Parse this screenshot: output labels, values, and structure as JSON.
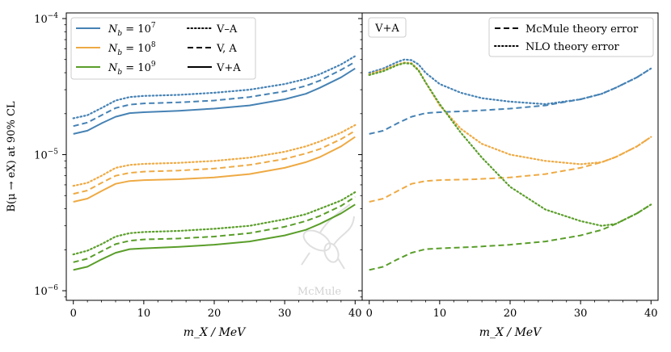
{
  "chart_data": [
    {
      "type": "line",
      "panel": "left",
      "ylabel": "B(μ → eX) at 90% CL",
      "xlabel": "m_X / MeV",
      "xlim": [
        -1,
        41
      ],
      "ylim": [
        8.5e-07,
        0.00011
      ],
      "yscale": "log",
      "xticks": [
        "0",
        "10",
        "20",
        "30",
        "40"
      ],
      "yticks": [
        {
          "value": 1e-06,
          "base": "10",
          "exp": "−6"
        },
        {
          "value": 1e-05,
          "base": "10",
          "exp": "−5"
        },
        {
          "value": 0.0001,
          "base": "10",
          "exp": "−4"
        }
      ],
      "series": [
        {
          "name": "Nb=1e7 V−A",
          "color": "#4682b4",
          "dash": "dotted",
          "x": [
            0,
            2,
            4,
            6,
            8,
            10,
            15,
            20,
            25,
            30,
            33,
            35,
            38,
            40
          ],
          "values": [
            1.85e-05,
            1.95e-05,
            2.2e-05,
            2.5e-05,
            2.65e-05,
            2.7e-05,
            2.75e-05,
            2.85e-05,
            3e-05,
            3.3e-05,
            3.6e-05,
            3.9e-05,
            4.6e-05,
            5.3e-05
          ]
        },
        {
          "name": "Nb=1e7 V,A",
          "color": "#4682b4",
          "dash": "dashed",
          "x": [
            0,
            2,
            4,
            6,
            8,
            10,
            15,
            20,
            25,
            30,
            33,
            35,
            38,
            40
          ],
          "values": [
            1.62e-05,
            1.72e-05,
            1.95e-05,
            2.2e-05,
            2.33e-05,
            2.38e-05,
            2.42e-05,
            2.5e-05,
            2.65e-05,
            2.92e-05,
            3.2e-05,
            3.5e-05,
            4.2e-05,
            4.8e-05
          ]
        },
        {
          "name": "Nb=1e7 V+A",
          "color": "#4682b4",
          "dash": "solid",
          "x": [
            0,
            2,
            4,
            6,
            8,
            10,
            15,
            20,
            25,
            30,
            33,
            35,
            38,
            40
          ],
          "values": [
            1.42e-05,
            1.5e-05,
            1.7e-05,
            1.9e-05,
            2.02e-05,
            2.05e-05,
            2.1e-05,
            2.18e-05,
            2.3e-05,
            2.55e-05,
            2.8e-05,
            3.1e-05,
            3.7e-05,
            4.3e-05
          ]
        },
        {
          "name": "Nb=1e8 V−A",
          "color": "#eeaa44",
          "dash": "dotted",
          "x": [
            0,
            2,
            4,
            6,
            8,
            10,
            15,
            20,
            25,
            30,
            33,
            35,
            38,
            40
          ],
          "values": [
            5.9e-06,
            6.2e-06,
            7e-06,
            8e-06,
            8.4e-06,
            8.55e-06,
            8.7e-06,
            9e-06,
            9.5e-06,
            1.05e-05,
            1.15e-05,
            1.25e-05,
            1.45e-05,
            1.65e-05
          ]
        },
        {
          "name": "Nb=1e8 V,A",
          "color": "#eeaa44",
          "dash": "dashed",
          "x": [
            0,
            2,
            4,
            6,
            8,
            10,
            15,
            20,
            25,
            30,
            33,
            35,
            38,
            40
          ],
          "values": [
            5.15e-06,
            5.45e-06,
            6.2e-06,
            7e-06,
            7.35e-06,
            7.5e-06,
            7.65e-06,
            7.9e-06,
            8.4e-06,
            9.3e-06,
            1.02e-05,
            1.1e-05,
            1.3e-05,
            1.5e-05
          ]
        },
        {
          "name": "Nb=1e8 V+A",
          "color": "#eeaa44",
          "dash": "solid",
          "x": [
            0,
            2,
            4,
            6,
            8,
            10,
            15,
            20,
            25,
            30,
            33,
            35,
            38,
            40
          ],
          "values": [
            4.5e-06,
            4.75e-06,
            5.4e-06,
            6.1e-06,
            6.4e-06,
            6.5e-06,
            6.6e-06,
            6.8e-06,
            7.2e-06,
            8e-06,
            8.8e-06,
            9.6e-06,
            1.15e-05,
            1.35e-05
          ]
        },
        {
          "name": "Nb=1e9 V−A",
          "color": "#5a9e2a",
          "dash": "dotted",
          "x": [
            0,
            2,
            4,
            6,
            8,
            10,
            15,
            20,
            25,
            30,
            33,
            35,
            38,
            40
          ],
          "values": [
            1.85e-06,
            1.97e-06,
            2.2e-06,
            2.5e-06,
            2.65e-06,
            2.7e-06,
            2.75e-06,
            2.85e-06,
            3e-06,
            3.35e-06,
            3.65e-06,
            4e-06,
            4.6e-06,
            5.3e-06
          ]
        },
        {
          "name": "Nb=1e9 V,A",
          "color": "#5a9e2a",
          "dash": "dashed",
          "x": [
            0,
            2,
            4,
            6,
            8,
            10,
            15,
            20,
            25,
            30,
            33,
            35,
            38,
            40
          ],
          "values": [
            1.62e-06,
            1.72e-06,
            1.95e-06,
            2.2e-06,
            2.33e-06,
            2.38e-06,
            2.42e-06,
            2.5e-06,
            2.65e-06,
            2.95e-06,
            3.25e-06,
            3.55e-06,
            4.2e-06,
            4.9e-06
          ]
        },
        {
          "name": "Nb=1e9 V+A",
          "color": "#5a9e2a",
          "dash": "solid",
          "x": [
            0,
            2,
            4,
            6,
            8,
            10,
            15,
            20,
            25,
            30,
            33,
            35,
            38,
            40
          ],
          "values": [
            1.42e-06,
            1.5e-06,
            1.7e-06,
            1.9e-06,
            2.02e-06,
            2.05e-06,
            2.1e-06,
            2.18e-06,
            2.3e-06,
            2.55e-06,
            2.8e-06,
            3.1e-06,
            3.7e-06,
            4.3e-06
          ]
        }
      ],
      "legend": {
        "placement": "top-left",
        "sample_entries": [
          {
            "base": "N",
            "sub": "b",
            "eq": " = 10",
            "exp": "7",
            "color": "#4682b4"
          },
          {
            "base": "N",
            "sub": "b",
            "eq": " = 10",
            "exp": "8",
            "color": "#eeaa44"
          },
          {
            "base": "N",
            "sub": "b",
            "eq": " = 10",
            "exp": "9",
            "color": "#5a9e2a"
          }
        ],
        "style_entries": [
          {
            "label": "V–A",
            "dash": "dotted"
          },
          {
            "label": "V, A",
            "dash": "dashed"
          },
          {
            "label": "V+A",
            "dash": "solid"
          }
        ]
      },
      "watermark": "McMule"
    },
    {
      "type": "line",
      "panel": "right",
      "title_box": "V+A",
      "xlabel": "m_X / MeV",
      "xlim": [
        -1,
        41
      ],
      "ylim": [
        8.5e-07,
        0.00011
      ],
      "yscale": "log",
      "xticks": [
        "0",
        "10",
        "20",
        "30",
        "40"
      ],
      "series": [
        {
          "name": "Nb=1e7 NLO theory error",
          "color": "#4682b4",
          "dash": "dotted",
          "x": [
            0,
            2,
            4,
            5,
            6,
            7,
            8,
            10,
            13,
            16,
            20,
            25,
            30,
            33,
            35,
            38,
            40
          ],
          "values": [
            4e-05,
            4.3e-05,
            4.8e-05,
            5e-05,
            4.95e-05,
            4.6e-05,
            4e-05,
            3.3e-05,
            2.85e-05,
            2.6e-05,
            2.45e-05,
            2.35e-05,
            2.55e-05,
            2.8e-05,
            3.1e-05,
            3.7e-05,
            4.3e-05
          ]
        },
        {
          "name": "Nb=1e7 McMule theory error",
          "color": "#4682b4",
          "dash": "dashed",
          "x": [
            0,
            2,
            4,
            6,
            8,
            10,
            15,
            20,
            25,
            30,
            33,
            35,
            38,
            40
          ],
          "values": [
            1.42e-05,
            1.5e-05,
            1.7e-05,
            1.9e-05,
            2.02e-05,
            2.05e-05,
            2.1e-05,
            2.18e-05,
            2.3e-05,
            2.55e-05,
            2.8e-05,
            3.1e-05,
            3.7e-05,
            4.3e-05
          ]
        },
        {
          "name": "Nb=1e8 NLO theory error",
          "color": "#eeaa44",
          "dash": "dotted",
          "x": [
            0,
            2,
            4,
            5,
            6,
            7,
            8,
            10,
            13,
            16,
            20,
            25,
            30,
            33,
            35,
            38,
            40
          ],
          "values": [
            3.9e-05,
            4.2e-05,
            4.6e-05,
            4.75e-05,
            4.7e-05,
            4.2e-05,
            3.4e-05,
            2.3e-05,
            1.55e-05,
            1.2e-05,
            1e-05,
            9e-06,
            8.5e-06,
            8.8e-06,
            9.6e-06,
            1.15e-05,
            1.35e-05
          ]
        },
        {
          "name": "Nb=1e8 McMule theory error",
          "color": "#eeaa44",
          "dash": "dashed",
          "x": [
            0,
            2,
            4,
            6,
            8,
            10,
            15,
            20,
            25,
            30,
            33,
            35,
            38,
            40
          ],
          "values": [
            4.5e-06,
            4.75e-06,
            5.4e-06,
            6.1e-06,
            6.4e-06,
            6.5e-06,
            6.6e-06,
            6.8e-06,
            7.2e-06,
            8e-06,
            8.8e-06,
            9.6e-06,
            1.15e-05,
            1.35e-05
          ]
        },
        {
          "name": "Nb=1e9 NLO theory error",
          "color": "#5a9e2a",
          "dash": "dotted",
          "x": [
            0,
            2,
            4,
            5,
            6,
            7,
            8,
            10,
            13,
            16,
            20,
            25,
            30,
            33,
            35,
            38,
            40
          ],
          "values": [
            3.85e-05,
            4.1e-05,
            4.55e-05,
            4.7e-05,
            4.65e-05,
            4.15e-05,
            3.4e-05,
            2.35e-05,
            1.45e-05,
            9.5e-06,
            5.8e-06,
            3.95e-06,
            3.25e-06,
            3e-06,
            3.1e-06,
            3.7e-06,
            4.3e-06
          ]
        },
        {
          "name": "Nb=1e9 McMule theory error",
          "color": "#5a9e2a",
          "dash": "dashed",
          "x": [
            0,
            2,
            4,
            6,
            8,
            10,
            15,
            20,
            25,
            30,
            33,
            35,
            38,
            40
          ],
          "values": [
            1.42e-06,
            1.5e-06,
            1.7e-06,
            1.9e-06,
            2.02e-06,
            2.05e-06,
            2.1e-06,
            2.18e-06,
            2.3e-06,
            2.55e-06,
            2.8e-06,
            3.1e-06,
            3.7e-06,
            4.3e-06
          ]
        }
      ],
      "legend": {
        "placement": "top-right",
        "entries": [
          {
            "label": "McMule theory error",
            "dash": "dashed"
          },
          {
            "label": "NLO theory error",
            "dash": "dotted"
          }
        ]
      }
    }
  ]
}
